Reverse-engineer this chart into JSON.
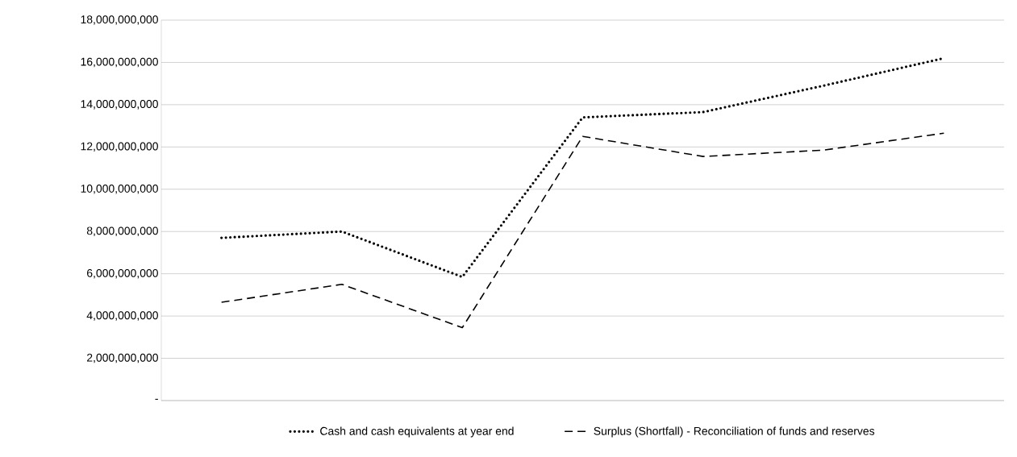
{
  "chart_data": {
    "type": "line",
    "categories": [
      null,
      null,
      null,
      null,
      null,
      null,
      null
    ],
    "series": [
      {
        "name": "Cash and cash equivalents at year end",
        "color": "#000000",
        "line_style": "dotted",
        "values": [
          7700000000,
          8000000000,
          5850000000,
          13400000000,
          13650000000,
          14900000000,
          16200000000
        ]
      },
      {
        "name": "Surplus (Shortfall) - Reconciliation of funds and reserves",
        "color": "#000000",
        "line_style": "dashed",
        "values": [
          4650000000,
          5500000000,
          3450000000,
          12500000000,
          11550000000,
          11850000000,
          12650000000
        ]
      }
    ],
    "ylim": [
      0,
      18000000000
    ],
    "yticks": [
      {
        "value": 0,
        "label": "-"
      },
      {
        "value": 2000000000,
        "label": "2,000,000,000"
      },
      {
        "value": 4000000000,
        "label": "4,000,000,000"
      },
      {
        "value": 6000000000,
        "label": "6,000,000,000"
      },
      {
        "value": 8000000000,
        "label": "8,000,000,000"
      },
      {
        "value": 10000000000,
        "label": "10,000,000,000"
      },
      {
        "value": 12000000000,
        "label": "12,000,000,000"
      },
      {
        "value": 14000000000,
        "label": "14,000,000,000"
      },
      {
        "value": 16000000000,
        "label": "16,000,000,000"
      },
      {
        "value": 18000000000,
        "label": "18,000,000,000"
      }
    ],
    "grid": "y",
    "legend": "bottom"
  }
}
